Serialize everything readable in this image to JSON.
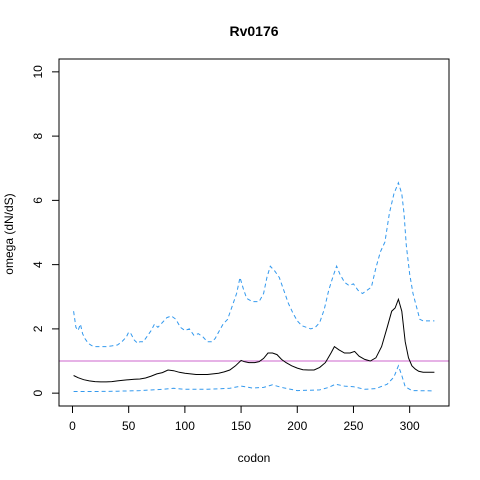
{
  "chart_data": {
    "type": "line",
    "title": "Rv0176",
    "xlabel": "codon",
    "ylabel": "omega (dN/dS)",
    "xlim": [
      0,
      323
    ],
    "ylim": [
      0,
      10
    ],
    "x_ticks": [
      0,
      50,
      100,
      150,
      200,
      250,
      300
    ],
    "y_ticks": [
      0,
      2,
      4,
      6,
      8,
      10
    ],
    "reference_line": {
      "y": 1,
      "color": "#cc66cc"
    },
    "grid": false,
    "series": [
      {
        "role": "upper",
        "color": "#3399ee",
        "style": "dashed",
        "points": [
          [
            1,
            2.55
          ],
          [
            3,
            2.05
          ],
          [
            5,
            1.95
          ],
          [
            7,
            2.15
          ],
          [
            9,
            1.85
          ],
          [
            11,
            1.7
          ],
          [
            14,
            1.55
          ],
          [
            17,
            1.48
          ],
          [
            20,
            1.45
          ],
          [
            25,
            1.45
          ],
          [
            30,
            1.45
          ],
          [
            35,
            1.47
          ],
          [
            40,
            1.5
          ],
          [
            44,
            1.6
          ],
          [
            48,
            1.75
          ],
          [
            50,
            1.9
          ],
          [
            52,
            1.85
          ],
          [
            55,
            1.65
          ],
          [
            58,
            1.55
          ],
          [
            60,
            1.6
          ],
          [
            63,
            1.6
          ],
          [
            66,
            1.75
          ],
          [
            70,
            1.95
          ],
          [
            73,
            2.15
          ],
          [
            76,
            2.05
          ],
          [
            80,
            2.2
          ],
          [
            84,
            2.35
          ],
          [
            88,
            2.4
          ],
          [
            92,
            2.3
          ],
          [
            96,
            2.05
          ],
          [
            100,
            1.95
          ],
          [
            104,
            2.0
          ],
          [
            108,
            1.8
          ],
          [
            112,
            1.85
          ],
          [
            116,
            1.75
          ],
          [
            120,
            1.6
          ],
          [
            124,
            1.6
          ],
          [
            127,
            1.7
          ],
          [
            130,
            1.9
          ],
          [
            134,
            2.15
          ],
          [
            138,
            2.3
          ],
          [
            142,
            2.7
          ],
          [
            146,
            3.1
          ],
          [
            149,
            3.6
          ],
          [
            152,
            3.25
          ],
          [
            155,
            2.95
          ],
          [
            160,
            2.85
          ],
          [
            166,
            2.85
          ],
          [
            170,
            3.1
          ],
          [
            173,
            3.6
          ],
          [
            176,
            3.95
          ],
          [
            180,
            3.8
          ],
          [
            184,
            3.6
          ],
          [
            188,
            3.2
          ],
          [
            192,
            2.8
          ],
          [
            196,
            2.5
          ],
          [
            200,
            2.25
          ],
          [
            204,
            2.1
          ],
          [
            208,
            2.05
          ],
          [
            212,
            2.0
          ],
          [
            216,
            2.05
          ],
          [
            220,
            2.2
          ],
          [
            224,
            2.6
          ],
          [
            228,
            3.2
          ],
          [
            232,
            3.65
          ],
          [
            235,
            3.95
          ],
          [
            238,
            3.7
          ],
          [
            242,
            3.45
          ],
          [
            246,
            3.35
          ],
          [
            250,
            3.4
          ],
          [
            254,
            3.2
          ],
          [
            258,
            3.1
          ],
          [
            262,
            3.2
          ],
          [
            266,
            3.3
          ],
          [
            270,
            3.9
          ],
          [
            274,
            4.4
          ],
          [
            278,
            4.7
          ],
          [
            282,
            5.6
          ],
          [
            286,
            6.2
          ],
          [
            290,
            6.55
          ],
          [
            293,
            6.2
          ],
          [
            295,
            5.6
          ],
          [
            297,
            4.6
          ],
          [
            300,
            3.7
          ],
          [
            303,
            3.1
          ],
          [
            306,
            2.7
          ],
          [
            309,
            2.3
          ],
          [
            312,
            2.25
          ],
          [
            318,
            2.25
          ],
          [
            322,
            2.25
          ]
        ]
      },
      {
        "role": "mean",
        "color": "#000000",
        "style": "solid",
        "points": [
          [
            1,
            0.55
          ],
          [
            5,
            0.48
          ],
          [
            10,
            0.42
          ],
          [
            15,
            0.38
          ],
          [
            20,
            0.36
          ],
          [
            25,
            0.35
          ],
          [
            30,
            0.35
          ],
          [
            35,
            0.36
          ],
          [
            40,
            0.38
          ],
          [
            45,
            0.4
          ],
          [
            50,
            0.42
          ],
          [
            55,
            0.43
          ],
          [
            60,
            0.44
          ],
          [
            65,
            0.47
          ],
          [
            70,
            0.53
          ],
          [
            75,
            0.6
          ],
          [
            80,
            0.64
          ],
          [
            85,
            0.72
          ],
          [
            90,
            0.7
          ],
          [
            95,
            0.65
          ],
          [
            100,
            0.62
          ],
          [
            105,
            0.6
          ],
          [
            110,
            0.58
          ],
          [
            115,
            0.58
          ],
          [
            120,
            0.58
          ],
          [
            125,
            0.6
          ],
          [
            130,
            0.62
          ],
          [
            135,
            0.66
          ],
          [
            140,
            0.72
          ],
          [
            145,
            0.85
          ],
          [
            150,
            1.02
          ],
          [
            153,
            0.98
          ],
          [
            157,
            0.95
          ],
          [
            162,
            0.95
          ],
          [
            166,
            0.98
          ],
          [
            170,
            1.08
          ],
          [
            174,
            1.25
          ],
          [
            178,
            1.25
          ],
          [
            182,
            1.2
          ],
          [
            186,
            1.05
          ],
          [
            190,
            0.95
          ],
          [
            195,
            0.85
          ],
          [
            200,
            0.78
          ],
          [
            205,
            0.73
          ],
          [
            210,
            0.72
          ],
          [
            215,
            0.72
          ],
          [
            220,
            0.8
          ],
          [
            225,
            0.95
          ],
          [
            230,
            1.25
          ],
          [
            233,
            1.45
          ],
          [
            237,
            1.35
          ],
          [
            242,
            1.25
          ],
          [
            247,
            1.25
          ],
          [
            251,
            1.3
          ],
          [
            255,
            1.15
          ],
          [
            260,
            1.05
          ],
          [
            265,
            1.0
          ],
          [
            270,
            1.1
          ],
          [
            275,
            1.45
          ],
          [
            280,
            2.05
          ],
          [
            284,
            2.55
          ],
          [
            287,
            2.65
          ],
          [
            290,
            2.92
          ],
          [
            293,
            2.55
          ],
          [
            296,
            1.6
          ],
          [
            299,
            1.1
          ],
          [
            302,
            0.85
          ],
          [
            305,
            0.75
          ],
          [
            308,
            0.68
          ],
          [
            312,
            0.65
          ],
          [
            316,
            0.65
          ],
          [
            322,
            0.65
          ]
        ]
      },
      {
        "role": "lower",
        "color": "#3399ee",
        "style": "dashed",
        "points": [
          [
            1,
            0.05
          ],
          [
            20,
            0.05
          ],
          [
            40,
            0.06
          ],
          [
            60,
            0.08
          ],
          [
            80,
            0.12
          ],
          [
            90,
            0.15
          ],
          [
            100,
            0.12
          ],
          [
            120,
            0.12
          ],
          [
            140,
            0.15
          ],
          [
            150,
            0.22
          ],
          [
            160,
            0.16
          ],
          [
            170,
            0.18
          ],
          [
            178,
            0.26
          ],
          [
            186,
            0.18
          ],
          [
            200,
            0.08
          ],
          [
            220,
            0.1
          ],
          [
            228,
            0.18
          ],
          [
            234,
            0.28
          ],
          [
            242,
            0.22
          ],
          [
            250,
            0.2
          ],
          [
            260,
            0.12
          ],
          [
            270,
            0.14
          ],
          [
            280,
            0.28
          ],
          [
            286,
            0.5
          ],
          [
            290,
            0.85
          ],
          [
            293,
            0.55
          ],
          [
            296,
            0.2
          ],
          [
            302,
            0.08
          ],
          [
            322,
            0.07
          ]
        ]
      }
    ]
  }
}
